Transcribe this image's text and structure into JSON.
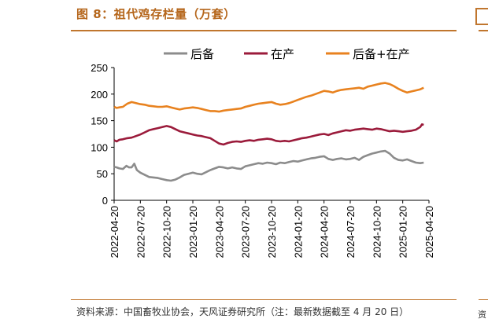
{
  "figure": {
    "title": "图 8：祖代鸡存栏量（万套）",
    "source": "资料来源：中国畜牧业协会，天风证券研究所（注：最新数据截至 4 月 20 日）",
    "edge_char": "资"
  },
  "chart_data": {
    "type": "line",
    "title": "祖代鸡存栏量（万套）",
    "xlabel": "",
    "ylabel": "",
    "ylim": [
      0,
      250
    ],
    "yticks": [
      0,
      50,
      100,
      150,
      200,
      250
    ],
    "x_tick_labels": [
      "2022-04-20",
      "2022-07-20",
      "2022-10-20",
      "2023-01-20",
      "2023-04-20",
      "2023-07-20",
      "2023-10-20",
      "2024-01-20",
      "2024-04-20",
      "2024-07-20",
      "2024-10-20",
      "2025-01-20",
      "2025-04-20"
    ],
    "x_range": [
      0,
      36
    ],
    "legend_position": "top",
    "grid": false,
    "series": [
      {
        "name": "后备",
        "color": "#8c8c8c",
        "points": [
          [
            0,
            63
          ],
          [
            0.3,
            62
          ],
          [
            0.6,
            60
          ],
          [
            1,
            59
          ],
          [
            1.4,
            65
          ],
          [
            1.7,
            62
          ],
          [
            2,
            62
          ],
          [
            2.3,
            69
          ],
          [
            2.6,
            57
          ],
          [
            3,
            52
          ],
          [
            3.5,
            48
          ],
          [
            4,
            44
          ],
          [
            4.5,
            43
          ],
          [
            5,
            42
          ],
          [
            5.5,
            40
          ],
          [
            6,
            38
          ],
          [
            6.5,
            37
          ],
          [
            7,
            39
          ],
          [
            7.5,
            43
          ],
          [
            8,
            48
          ],
          [
            8.5,
            50
          ],
          [
            9,
            52
          ],
          [
            9.5,
            50
          ],
          [
            10,
            49
          ],
          [
            10.5,
            53
          ],
          [
            11,
            57
          ],
          [
            11.5,
            60
          ],
          [
            12,
            63
          ],
          [
            12.5,
            62
          ],
          [
            13,
            60
          ],
          [
            13.5,
            62
          ],
          [
            14,
            60
          ],
          [
            14.5,
            59
          ],
          [
            15,
            64
          ],
          [
            15.5,
            66
          ],
          [
            16,
            68
          ],
          [
            16.5,
            70
          ],
          [
            17,
            69
          ],
          [
            17.5,
            71
          ],
          [
            18,
            70
          ],
          [
            18.5,
            68
          ],
          [
            19,
            71
          ],
          [
            19.5,
            70
          ],
          [
            20,
            72
          ],
          [
            20.5,
            74
          ],
          [
            21,
            73
          ],
          [
            21.5,
            75
          ],
          [
            22,
            77
          ],
          [
            22.5,
            79
          ],
          [
            23,
            80
          ],
          [
            23.5,
            82
          ],
          [
            24,
            83
          ],
          [
            24.5,
            78
          ],
          [
            25,
            76
          ],
          [
            25.5,
            78
          ],
          [
            26,
            79
          ],
          [
            26.5,
            77
          ],
          [
            27,
            78
          ],
          [
            27.5,
            80
          ],
          [
            28,
            76
          ],
          [
            28.5,
            82
          ],
          [
            29,
            85
          ],
          [
            29.5,
            88
          ],
          [
            30,
            90
          ],
          [
            30.5,
            92
          ],
          [
            31,
            93
          ],
          [
            31.5,
            88
          ],
          [
            32,
            80
          ],
          [
            32.5,
            76
          ],
          [
            33,
            75
          ],
          [
            33.5,
            77
          ],
          [
            34,
            74
          ],
          [
            34.5,
            71
          ],
          [
            35,
            70
          ],
          [
            35.4,
            71
          ]
        ]
      },
      {
        "name": "在产",
        "color": "#9b1b3b",
        "points": [
          [
            0,
            113
          ],
          [
            0.3,
            111
          ],
          [
            0.6,
            114
          ],
          [
            1,
            115
          ],
          [
            1.5,
            117
          ],
          [
            2,
            118
          ],
          [
            2.5,
            121
          ],
          [
            3,
            124
          ],
          [
            3.5,
            128
          ],
          [
            4,
            132
          ],
          [
            4.5,
            134
          ],
          [
            5,
            136
          ],
          [
            5.5,
            138
          ],
          [
            6,
            140
          ],
          [
            6.5,
            138
          ],
          [
            7,
            134
          ],
          [
            7.5,
            130
          ],
          [
            8,
            128
          ],
          [
            8.5,
            126
          ],
          [
            9,
            124
          ],
          [
            9.5,
            122
          ],
          [
            10,
            121
          ],
          [
            10.5,
            119
          ],
          [
            11,
            117
          ],
          [
            11.5,
            112
          ],
          [
            12,
            107
          ],
          [
            12.5,
            105
          ],
          [
            13,
            108
          ],
          [
            13.5,
            110
          ],
          [
            14,
            111
          ],
          [
            14.5,
            110
          ],
          [
            15,
            112
          ],
          [
            15.5,
            113
          ],
          [
            16,
            112
          ],
          [
            16.5,
            114
          ],
          [
            17,
            115
          ],
          [
            17.5,
            116
          ],
          [
            18,
            115
          ],
          [
            18.5,
            112
          ],
          [
            19,
            111
          ],
          [
            19.5,
            112
          ],
          [
            20,
            111
          ],
          [
            20.5,
            113
          ],
          [
            21,
            115
          ],
          [
            21.5,
            117
          ],
          [
            22,
            118
          ],
          [
            22.5,
            120
          ],
          [
            23,
            122
          ],
          [
            23.5,
            124
          ],
          [
            24,
            125
          ],
          [
            24.5,
            123
          ],
          [
            25,
            126
          ],
          [
            25.5,
            128
          ],
          [
            26,
            130
          ],
          [
            26.5,
            132
          ],
          [
            27,
            131
          ],
          [
            27.5,
            133
          ],
          [
            28,
            134
          ],
          [
            28.5,
            135
          ],
          [
            29,
            134
          ],
          [
            29.5,
            133
          ],
          [
            30,
            135
          ],
          [
            30.5,
            134
          ],
          [
            31,
            132
          ],
          [
            31.5,
            130
          ],
          [
            32,
            131
          ],
          [
            32.5,
            130
          ],
          [
            33,
            129
          ],
          [
            33.5,
            130
          ],
          [
            34,
            131
          ],
          [
            34.5,
            133
          ],
          [
            35,
            138
          ],
          [
            35.2,
            143
          ],
          [
            35.4,
            142
          ]
        ]
      },
      {
        "name": "后备+在产",
        "color": "#e8821f",
        "points": [
          [
            0,
            176
          ],
          [
            0.3,
            174
          ],
          [
            0.6,
            175
          ],
          [
            1,
            176
          ],
          [
            1.5,
            182
          ],
          [
            2,
            185
          ],
          [
            2.5,
            183
          ],
          [
            3,
            181
          ],
          [
            3.5,
            180
          ],
          [
            4,
            178
          ],
          [
            4.5,
            177
          ],
          [
            5,
            176
          ],
          [
            5.5,
            176
          ],
          [
            6,
            177
          ],
          [
            6.5,
            175
          ],
          [
            7,
            173
          ],
          [
            7.5,
            171
          ],
          [
            8,
            173
          ],
          [
            8.5,
            174
          ],
          [
            9,
            175
          ],
          [
            9.5,
            174
          ],
          [
            10,
            172
          ],
          [
            10.5,
            170
          ],
          [
            11,
            168
          ],
          [
            11.5,
            168
          ],
          [
            12,
            167
          ],
          [
            12.5,
            169
          ],
          [
            13,
            170
          ],
          [
            13.5,
            171
          ],
          [
            14,
            172
          ],
          [
            14.5,
            173
          ],
          [
            15,
            176
          ],
          [
            15.5,
            178
          ],
          [
            16,
            180
          ],
          [
            16.5,
            182
          ],
          [
            17,
            183
          ],
          [
            17.5,
            184
          ],
          [
            18,
            185
          ],
          [
            18.5,
            182
          ],
          [
            19,
            180
          ],
          [
            19.5,
            181
          ],
          [
            20,
            183
          ],
          [
            20.5,
            186
          ],
          [
            21,
            189
          ],
          [
            21.5,
            192
          ],
          [
            22,
            195
          ],
          [
            22.5,
            197
          ],
          [
            23,
            200
          ],
          [
            23.5,
            203
          ],
          [
            24,
            206
          ],
          [
            24.5,
            205
          ],
          [
            25,
            203
          ],
          [
            25.5,
            206
          ],
          [
            26,
            208
          ],
          [
            26.5,
            209
          ],
          [
            27,
            210
          ],
          [
            27.5,
            211
          ],
          [
            28,
            212
          ],
          [
            28.5,
            210
          ],
          [
            29,
            214
          ],
          [
            29.5,
            216
          ],
          [
            30,
            218
          ],
          [
            30.5,
            220
          ],
          [
            31,
            221
          ],
          [
            31.5,
            219
          ],
          [
            32,
            215
          ],
          [
            32.5,
            210
          ],
          [
            33,
            206
          ],
          [
            33.5,
            203
          ],
          [
            34,
            205
          ],
          [
            34.5,
            207
          ],
          [
            35,
            209
          ],
          [
            35.4,
            212
          ]
        ]
      }
    ]
  }
}
